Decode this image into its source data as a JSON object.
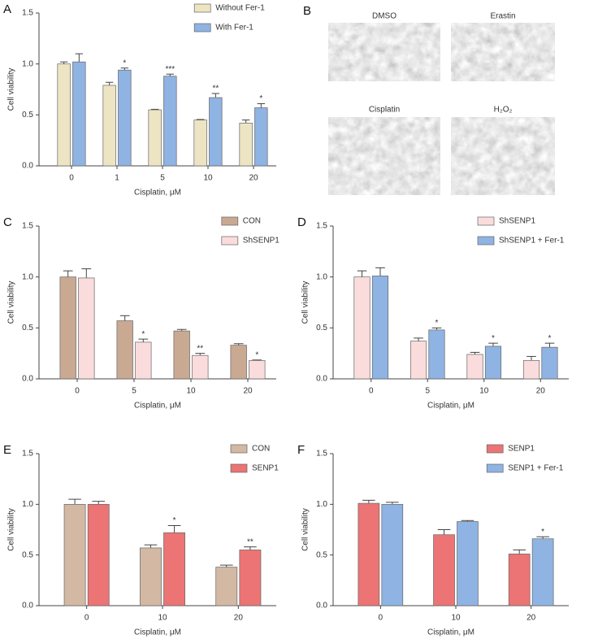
{
  "chart_data": [
    {
      "type": "bar",
      "panel": "A",
      "xlabel": "Cisplatin, μM",
      "ylabel": "Cell viability",
      "categories": [
        "0",
        "1",
        "5",
        "10",
        "20"
      ],
      "series": [
        {
          "name": "Without Fer-1",
          "color": "#ede4c3",
          "values": [
            1.0,
            0.79,
            0.55,
            0.45,
            0.42
          ],
          "errors": [
            0.02,
            0.03,
            0.005,
            0.005,
            0.03
          ],
          "significance": [
            null,
            null,
            null,
            null,
            null
          ]
        },
        {
          "name": "With Fer-1",
          "color": "#8fb3e2",
          "values": [
            1.02,
            0.94,
            0.88,
            0.67,
            0.57
          ],
          "errors": [
            0.08,
            0.02,
            0.02,
            0.04,
            0.04
          ],
          "significance": [
            null,
            "*",
            "***",
            "**",
            "*"
          ]
        }
      ],
      "ylim": [
        0,
        1.5
      ],
      "yticks": [
        {
          "value": 0,
          "label": "0.0"
        },
        0.5,
        {
          "value": 1,
          "label": "1.0"
        },
        1.5
      ],
      "legend": "upper right"
    },
    {
      "type": "bar",
      "panel": "C",
      "xlabel": "Cisplatin, μM",
      "ylabel": "Cell viability",
      "categories": [
        "0",
        "5",
        "10",
        "20"
      ],
      "series": [
        {
          "name": "CON",
          "color": "#c9a992",
          "values": [
            1.0,
            0.57,
            0.47,
            0.33
          ],
          "errors": [
            0.06,
            0.05,
            0.015,
            0.015
          ],
          "significance": [
            null,
            null,
            null,
            null
          ]
        },
        {
          "name": "ShSENP1",
          "color": "#fbdcdc",
          "values": [
            0.99,
            0.36,
            0.23,
            0.18
          ],
          "errors": [
            0.09,
            0.03,
            0.02,
            0.005
          ],
          "significance": [
            null,
            "*",
            "**",
            "*"
          ]
        }
      ],
      "ylim": [
        0,
        1.5
      ],
      "yticks": [
        {
          "value": 0,
          "label": "0.0"
        },
        0.5,
        {
          "value": 1,
          "label": "1.0"
        },
        1.5
      ],
      "legend": "upper right"
    },
    {
      "type": "bar",
      "panel": "D",
      "xlabel": "Cisplatin, μM",
      "ylabel": "Cell viability",
      "categories": [
        "0",
        "5",
        "10",
        "20"
      ],
      "series": [
        {
          "name": "ShSENP1",
          "color": "#fbdcdc",
          "values": [
            1.0,
            0.37,
            0.24,
            0.18
          ],
          "errors": [
            0.06,
            0.03,
            0.02,
            0.04
          ],
          "significance": [
            null,
            null,
            null,
            null
          ]
        },
        {
          "name": "ShSENP1 + Fer-1",
          "color": "#8fb3e2",
          "values": [
            1.01,
            0.48,
            0.32,
            0.31
          ],
          "errors": [
            0.08,
            0.02,
            0.03,
            0.04
          ],
          "significance": [
            null,
            "*",
            "*",
            "*"
          ]
        }
      ],
      "ylim": [
        0,
        1.5
      ],
      "yticks": [
        {
          "value": 0,
          "label": "0.0"
        },
        0.5,
        {
          "value": 1,
          "label": "1.0"
        },
        1.5
      ],
      "legend": "upper right"
    },
    {
      "type": "bar",
      "panel": "E",
      "xlabel": "Cisplatin, μM",
      "ylabel": "Cell viability",
      "categories": [
        "0",
        "10",
        "20"
      ],
      "series": [
        {
          "name": "CON",
          "color": "#d3b8a3",
          "values": [
            1.0,
            0.57,
            0.38
          ],
          "errors": [
            0.05,
            0.03,
            0.02
          ],
          "significance": [
            null,
            null,
            null
          ]
        },
        {
          "name": "SENP1",
          "color": "#ec7474",
          "values": [
            1.0,
            0.72,
            0.55
          ],
          "errors": [
            0.03,
            0.07,
            0.03
          ],
          "significance": [
            null,
            "*",
            "**"
          ]
        }
      ],
      "ylim": [
        0,
        1.5
      ],
      "yticks": [
        {
          "value": 0,
          "label": "0.0"
        },
        0.5,
        {
          "value": 1,
          "label": "1.0"
        },
        1.5
      ],
      "legend": "upper right"
    },
    {
      "type": "bar",
      "panel": "F",
      "xlabel": "Cisplatin, μM",
      "ylabel": "Cell viability",
      "categories": [
        "0",
        "10",
        "20"
      ],
      "series": [
        {
          "name": "SENP1",
          "color": "#ec7474",
          "values": [
            1.01,
            0.7,
            0.51
          ],
          "errors": [
            0.03,
            0.05,
            0.04
          ],
          "significance": [
            null,
            null,
            null
          ]
        },
        {
          "name": "SENP1 + Fer-1",
          "color": "#8fb3e2",
          "values": [
            1.0,
            0.83,
            0.66
          ],
          "errors": [
            0.02,
            0.01,
            0.02
          ],
          "significance": [
            null,
            null,
            "*"
          ]
        }
      ],
      "ylim": [
        0,
        1.5
      ],
      "yticks": [
        {
          "value": 0,
          "label": "0.0"
        },
        0.5,
        {
          "value": 1,
          "label": "1.0"
        },
        1.5
      ],
      "legend": "upper right"
    }
  ],
  "panel_b": {
    "panel": "B",
    "images": [
      "DMSO",
      "Erastin",
      "Cisplatin",
      "H₂O₂"
    ]
  }
}
